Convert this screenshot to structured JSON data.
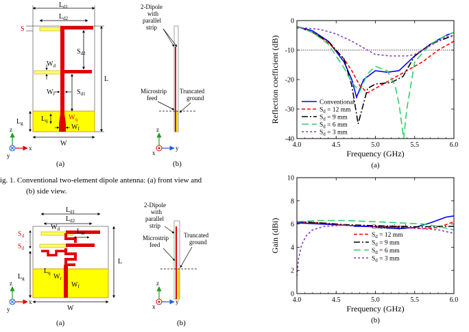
{
  "fig1": {
    "front": {
      "dims": {
        "Ld1": "L",
        "Ld1_sub": "d1",
        "Ld2": "L",
        "Ld2_sub": "d2",
        "S": "S",
        "Sd2": "S",
        "Sd2_sub": "d2",
        "Wd": "W",
        "Wd_sub": "d",
        "Wr": "W",
        "Wr_sub": "r",
        "Sd1": "S",
        "Sd1_sub": "d1",
        "L": "L",
        "Lg": "L",
        "Lg_sub": "g",
        "Lq": "L",
        "Lq_sub": "q",
        "Wq": "W",
        "Wq_sub": "q",
        "Wf": "W",
        "Wf_sub": "f",
        "W": "W"
      },
      "label": "(a)"
    },
    "side": {
      "dipole_label_1": "2-Dipole",
      "dipole_label_2": "with",
      "dipole_label_3": "parallel",
      "dipole_label_4": "strip",
      "feed_label_1": "Microstrip",
      "feed_label_2": "feed",
      "ground_label_1": "Truncated",
      "ground_label_2": "ground",
      "label": "(b)"
    },
    "caption_line1": "ig. 1. Conventional two-element dipole antenna: (a) front view and",
    "caption_line2": "(b) side view."
  },
  "fig2": {
    "front": {
      "Ld1": "L",
      "Ld1_sub": "d1",
      "Ld2": "L",
      "Ld2_sub": "d2",
      "Wd": "W",
      "Wd_sub": "d",
      "Lm": "L",
      "Lm_sub": "m",
      "Sd_a": "S",
      "Sd_a_sub": "d",
      "Sd_b": "S",
      "Sd_b_sub": "d",
      "L": "L",
      "Lg": "L",
      "Lg_sub": "g",
      "Lq": "L",
      "Lq_sub": "q",
      "Wr": "W",
      "Wr_sub": "r",
      "Wf": "W",
      "Wf_sub": "f",
      "W": "W",
      "label": "(a)"
    },
    "side": {
      "dipole_label_1": "2-Dipole",
      "dipole_label_2": "with",
      "dipole_label_3": "parallel",
      "dipole_label_4": "strip",
      "feed_label_1": "Microstrip",
      "feed_label_2": "feed",
      "ground_label_1": "Truncated",
      "ground_label_2": "ground",
      "label": "(b)"
    }
  },
  "axes_labels": {
    "z": "z",
    "y": "y",
    "x": "x"
  },
  "colors": {
    "metal": "#e00000",
    "ground": "#ffff00",
    "ground_edge": "#c8a000",
    "blue": "#0000ff",
    "red": "#ff0000",
    "black": "#000000",
    "green": "#33cc66",
    "purple": "#8833cc"
  },
  "chart_data": [
    {
      "type": "line",
      "title": "",
      "xlabel": "Frequency (GHz)",
      "ylabel": "Reflection coefficient (dB)",
      "xlim": [
        4.0,
        6.0
      ],
      "ylim": [
        -40,
        0
      ],
      "xticks": [
        "4.0",
        "4.5",
        "5.0",
        "5.5",
        "6.0"
      ],
      "yticks": [
        "0",
        "-10",
        "-20",
        "-30",
        "-40"
      ],
      "reference_line": -10,
      "panel_label": "(a)",
      "legend": "bottom-left",
      "series": [
        {
          "name": "Conventional",
          "color": "#0000ff",
          "dash": "",
          "x": [
            4.0,
            4.2,
            4.4,
            4.6,
            4.7,
            4.76,
            4.85,
            5.0,
            5.15,
            5.3,
            5.5,
            5.7,
            5.9,
            6.0
          ],
          "y": [
            -2,
            -3.5,
            -7,
            -14,
            -20,
            -26,
            -20,
            -17,
            -17.5,
            -17,
            -12,
            -8,
            -5,
            -4
          ]
        },
        {
          "name": "S_d = 12 mm",
          "color": "#ff0000",
          "dash": "5,3",
          "x": [
            4.0,
            4.2,
            4.4,
            4.6,
            4.7,
            4.8,
            4.9,
            5.0,
            5.2,
            5.4,
            5.6,
            5.8,
            6.0
          ],
          "y": [
            -2,
            -4,
            -7.5,
            -13,
            -17,
            -22,
            -24.5,
            -23,
            -20,
            -17,
            -14,
            -10,
            -7
          ]
        },
        {
          "name": "S_d = 9 mm",
          "color": "#000000",
          "dash": "9,3,2,3",
          "x": [
            4.0,
            4.2,
            4.4,
            4.6,
            4.7,
            4.78,
            4.9,
            5.0,
            5.2,
            5.35,
            5.5,
            5.7,
            5.9,
            6.0
          ],
          "y": [
            -2,
            -4,
            -7,
            -13,
            -22,
            -35,
            -23,
            -21.5,
            -21,
            -19,
            -12,
            -8,
            -6,
            -5
          ]
        },
        {
          "name": "S_d = 6 mm",
          "color": "#33cc66",
          "dash": "10,5",
          "x": [
            4.0,
            4.2,
            4.4,
            4.6,
            4.7,
            4.8,
            4.9,
            5.0,
            5.15,
            5.25,
            5.3,
            5.36,
            5.4,
            5.5,
            5.7,
            5.9,
            6.0
          ],
          "y": [
            -2,
            -4,
            -8,
            -16,
            -21,
            -24,
            -18,
            -15.5,
            -17,
            -22,
            -28,
            -40,
            -30,
            -14,
            -8,
            -5,
            -4
          ]
        },
        {
          "name": "S_d = 3 mm",
          "color": "#8833cc",
          "dash": "3,3",
          "x": [
            4.0,
            4.1,
            4.3,
            4.5,
            4.7,
            4.9,
            5.0,
            5.2,
            5.4,
            5.5,
            5.6,
            5.8,
            5.9,
            6.0
          ],
          "y": [
            -2.5,
            -2.5,
            -3,
            -4.5,
            -7,
            -10,
            -11.5,
            -12,
            -12,
            -11.5,
            -10,
            -7,
            -5.5,
            -5
          ]
        }
      ]
    },
    {
      "type": "line",
      "title": "",
      "xlabel": "Frequency (GHz)",
      "ylabel": "Gain (dBi)",
      "xlim": [
        4.0,
        6.0
      ],
      "ylim": [
        0,
        10
      ],
      "xticks": [
        "4.0",
        "4.5",
        "5.0",
        "5.5",
        "6.0"
      ],
      "yticks": [
        "0",
        "2",
        "4",
        "6",
        "8",
        "10"
      ],
      "panel_label": "(b)",
      "legend": "center-right",
      "series": [
        {
          "name": "Conventional",
          "color": "#0000ff",
          "dash": "",
          "x": [
            4.0,
            4.3,
            4.6,
            5.0,
            5.3,
            5.5,
            5.7,
            5.9,
            6.0
          ],
          "y": [
            6.1,
            6.0,
            5.9,
            5.75,
            5.6,
            5.7,
            6.1,
            6.6,
            6.7
          ]
        },
        {
          "name": "S_d = 12 mm",
          "color": "#ff0000",
          "dash": "5,3",
          "x": [
            4.0,
            4.3,
            4.6,
            5.0,
            5.3,
            5.6,
            5.8,
            6.0
          ],
          "y": [
            6.2,
            6.1,
            5.9,
            5.8,
            5.75,
            5.6,
            5.7,
            6.2
          ]
        },
        {
          "name": "S_d = 9 mm",
          "color": "#000000",
          "dash": "9,3,2,3",
          "x": [
            4.0,
            4.3,
            4.6,
            5.0,
            5.3,
            5.6,
            5.8,
            6.0
          ],
          "y": [
            6.2,
            6.1,
            5.95,
            5.85,
            5.8,
            5.75,
            5.8,
            5.8
          ]
        },
        {
          "name": "S_d = 6 mm",
          "color": "#33cc66",
          "dash": "10,5",
          "x": [
            4.0,
            4.3,
            4.6,
            5.0,
            5.3,
            5.6,
            5.8,
            6.0
          ],
          "y": [
            6.2,
            6.3,
            6.3,
            6.2,
            6.1,
            6.0,
            5.8,
            5.5
          ]
        },
        {
          "name": "S_d = 3 mm",
          "color": "#8833cc",
          "dash": "3,3",
          "x": [
            4.0,
            4.02,
            4.06,
            4.12,
            4.2,
            4.35,
            4.6,
            5.0,
            5.3,
            5.6,
            5.8,
            6.0
          ],
          "y": [
            1.5,
            3.0,
            4.2,
            5.0,
            5.5,
            5.8,
            5.9,
            5.75,
            5.7,
            5.6,
            5.5,
            5.2
          ]
        }
      ]
    }
  ]
}
